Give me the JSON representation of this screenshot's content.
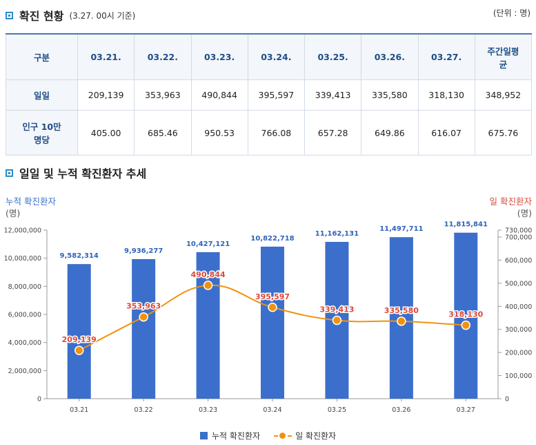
{
  "section1": {
    "title": "확진 현황",
    "subtitle": "(3.27. 00시 기준)",
    "unit": "(단위 : 명)"
  },
  "table": {
    "headers": [
      "구분",
      "03.21.",
      "03.22.",
      "03.23.",
      "03.24.",
      "03.25.",
      "03.26.",
      "03.27.",
      "주간일평균"
    ],
    "rows": [
      [
        "일일",
        "209,139",
        "353,963",
        "490,844",
        "395,597",
        "339,413",
        "335,580",
        "318,130",
        "348,952"
      ],
      [
        "인구 10만명당",
        "405.00",
        "685.46",
        "950.53",
        "766.08",
        "657.28",
        "649.86",
        "616.07",
        "675.76"
      ]
    ]
  },
  "section2": {
    "title": "일일 및 누적 확진환자 추세"
  },
  "chart_data": {
    "type": "bar",
    "title": "일일 및 누적 확진환자 추세",
    "categories": [
      "03.21",
      "03.22",
      "03.23",
      "03.24",
      "03.25",
      "03.26",
      "03.27"
    ],
    "left_axis_label": "누적 확진환자",
    "left_axis_unit": "(명)",
    "right_axis_label": "일 확진환자",
    "right_axis_unit": "(명)",
    "ylim_left": [
      0,
      12000000
    ],
    "ylim_right": [
      0,
      730000
    ],
    "yticks_left": [
      "0",
      "2,000,000",
      "4,000,000",
      "6,000,000",
      "8,000,000",
      "10,000,000",
      "12,000,000"
    ],
    "yticks_right": [
      "0",
      "100,000",
      "200,000",
      "300,000",
      "400,000",
      "500,000",
      "600,000",
      "700,000",
      "730,000"
    ],
    "series": [
      {
        "name": "누적 확진환자",
        "type": "bar",
        "axis": "left",
        "color": "#3b6fcb",
        "values": [
          9582314,
          9936277,
          10427121,
          10822718,
          11162131,
          11497711,
          11815841
        ],
        "labels": [
          "9,582,314",
          "9,936,277",
          "10,427,121",
          "10,822,718",
          "11,162,131",
          "11,497,711",
          "11,815,841"
        ]
      },
      {
        "name": "일 확진환자",
        "type": "line",
        "axis": "right",
        "color": "#f0920f",
        "values": [
          209139,
          353963,
          490844,
          395597,
          339413,
          335580,
          318130
        ],
        "labels": [
          "209,139",
          "353,963",
          "490,844",
          "395,597",
          "339,413",
          "335,580",
          "318,130"
        ]
      }
    ]
  }
}
